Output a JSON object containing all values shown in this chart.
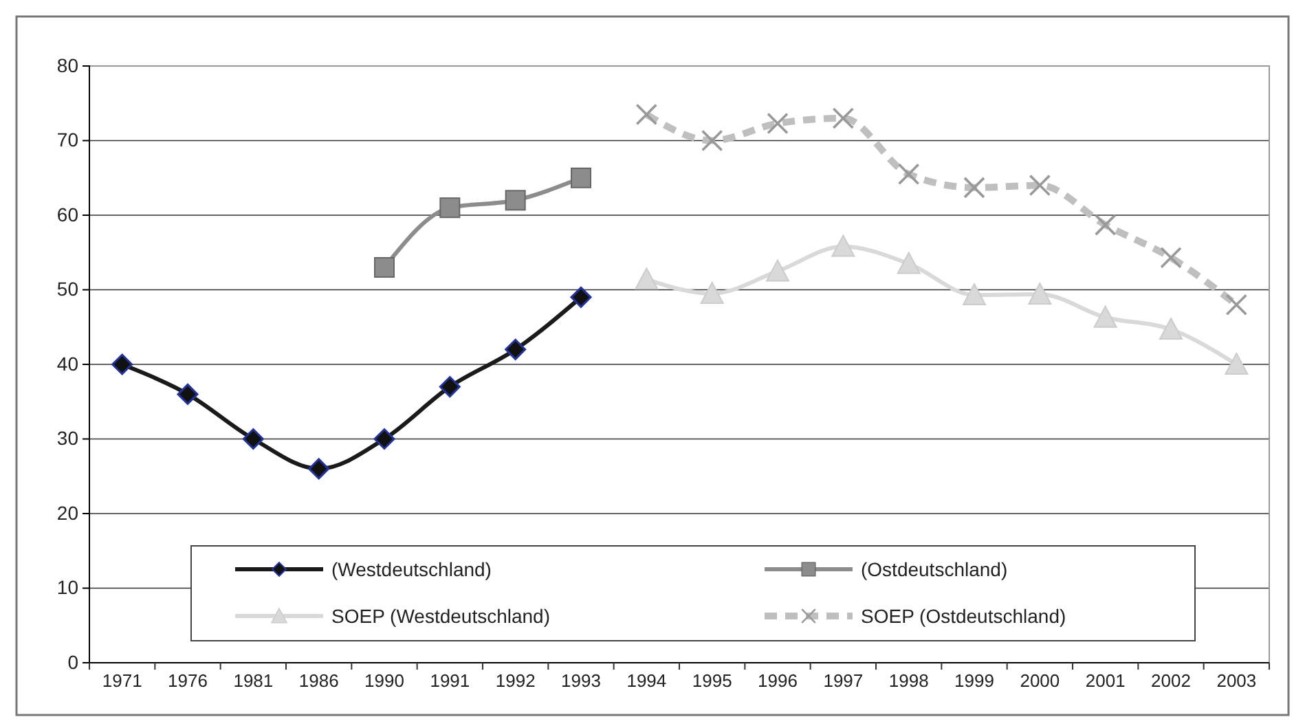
{
  "chart_data": {
    "type": "line",
    "categories": [
      "1971",
      "1976",
      "1981",
      "1986",
      "1990",
      "1991",
      "1992",
      "1993",
      "1994",
      "1995",
      "1996",
      "1997",
      "1998",
      "1999",
      "2000",
      "2001",
      "2002",
      "2003"
    ],
    "series": [
      {
        "name": "(Westdeutschland)",
        "color": "#1a1a1a",
        "marker": "diamond",
        "line_style": "solid",
        "values": [
          40,
          36,
          30,
          26,
          30,
          37,
          42,
          49,
          null,
          null,
          null,
          null,
          null,
          null,
          null,
          null,
          null,
          null
        ]
      },
      {
        "name": "(Ostdeutschland)",
        "color": "#8c8c8c",
        "marker": "square",
        "line_style": "solid",
        "values": [
          null,
          null,
          null,
          null,
          53,
          61,
          62,
          65,
          null,
          null,
          null,
          null,
          null,
          null,
          null,
          null,
          null,
          null
        ]
      },
      {
        "name": "SOEP (Westdeutschland)",
        "color": "#d9d9d9",
        "marker": "triangle",
        "line_style": "solid",
        "values": [
          null,
          null,
          null,
          null,
          null,
          null,
          null,
          null,
          51.4,
          49.5,
          52.5,
          55.8,
          53.5,
          49.3,
          49.4,
          46.3,
          44.7,
          40
        ]
      },
      {
        "name": "SOEP (Ostdeutschland)",
        "color": "#bfbfbf",
        "marker": "cross",
        "line_style": "dashed",
        "values": [
          null,
          null,
          null,
          null,
          null,
          null,
          null,
          null,
          73.5,
          70,
          72.3,
          73,
          65.5,
          63.7,
          64,
          58.7,
          54.3,
          48
        ]
      }
    ],
    "ylim": [
      0,
      80
    ],
    "yticks": [
      0,
      10,
      20,
      30,
      40,
      50,
      60,
      70,
      80
    ],
    "grid": "y",
    "legend": "bottom"
  }
}
